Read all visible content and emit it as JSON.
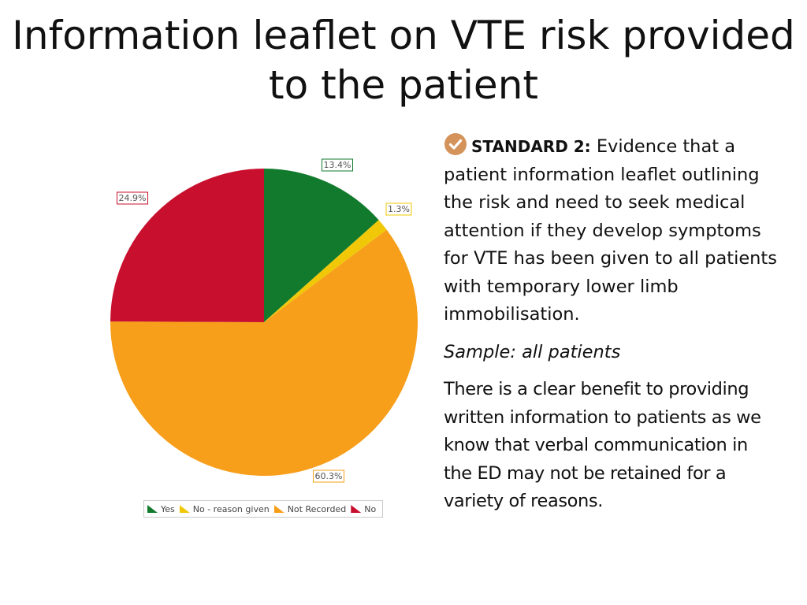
{
  "slide": {
    "title": "Information leaflet on VTE risk provided to the patient",
    "standard_label": "STANDARD 2:",
    "standard_text": "Evidence that a patient information leaflet outlining the risk and need to seek medical attention if they develop symptoms for VTE has been given to all patients with temporary lower limb immobilisation.",
    "sample_text": "Sample: all patients",
    "benefit_text": "There is a clear benefit to providing written information to patients as we know that verbal communication in the ED may not be retained for a variety of reasons.",
    "check_icon": "check-circle-icon",
    "check_color": "#d4935a"
  },
  "chart_data": {
    "type": "pie",
    "title": "",
    "categories": [
      "Yes",
      "No - reason given",
      "Not Recorded",
      "No"
    ],
    "values": [
      13.4,
      1.3,
      60.3,
      24.9
    ],
    "labels": [
      "13.4%",
      "1.3%",
      "60.3%",
      "24.9%"
    ],
    "colors": [
      "#127a2c",
      "#f0c808",
      "#f79f1a",
      "#c8102e"
    ],
    "start_angle_deg": 0,
    "direction": "clockwise",
    "legend": "bottom"
  }
}
